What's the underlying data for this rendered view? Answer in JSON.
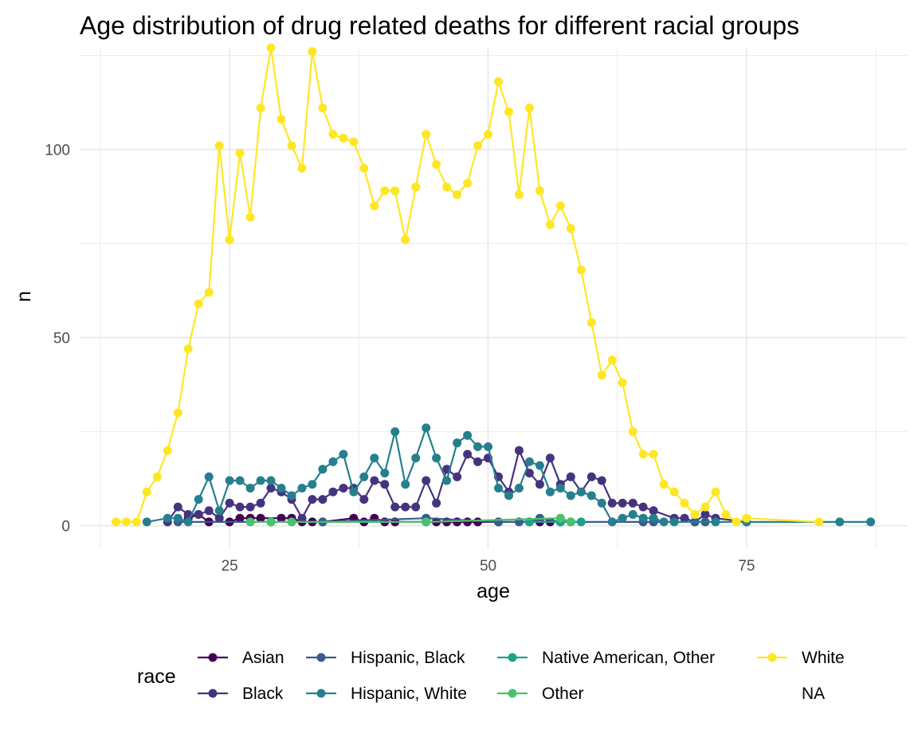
{
  "chart_data": {
    "type": "line",
    "title": "Age distribution of drug related deaths for different racial groups",
    "xlabel": "age",
    "ylabel": "n",
    "xlim": [
      10.5,
      90.5
    ],
    "ylim": [
      -6,
      127
    ],
    "x_ticks": [
      25,
      50,
      75
    ],
    "x_tick_labels": [
      "25",
      "50",
      "75"
    ],
    "y_ticks": [
      0,
      50,
      100
    ],
    "y_tick_labels": [
      "0",
      "50",
      "100"
    ],
    "grid": true,
    "legend": {
      "title": "race",
      "position": "bottom",
      "entries": [
        {
          "label": "Asian",
          "color": "#440154"
        },
        {
          "label": "Black",
          "color": "#46337E"
        },
        {
          "label": "Hispanic, Black",
          "color": "#365C8D"
        },
        {
          "label": "Hispanic, White",
          "color": "#277F8E"
        },
        {
          "label": "Native American, Other",
          "color": "#1FA187"
        },
        {
          "label": "Other",
          "color": "#4AC16D"
        },
        {
          "label": "White",
          "color": "#FDE725"
        },
        {
          "label": "NA",
          "color": null
        }
      ]
    },
    "series": [
      {
        "name": "Asian",
        "color": "#440154",
        "points": [
          [
            21,
            2
          ],
          [
            22,
            3
          ],
          [
            23,
            1
          ],
          [
            25,
            1
          ],
          [
            26,
            2
          ],
          [
            27,
            2
          ],
          [
            28,
            2
          ],
          [
            30,
            2
          ],
          [
            31,
            2
          ],
          [
            32,
            1
          ],
          [
            33,
            1
          ],
          [
            34,
            1
          ],
          [
            37,
            2
          ],
          [
            38,
            1
          ],
          [
            39,
            2
          ],
          [
            40,
            1
          ],
          [
            41,
            1
          ],
          [
            44,
            1
          ],
          [
            45,
            1
          ],
          [
            46,
            1
          ],
          [
            47,
            1
          ],
          [
            48,
            1
          ],
          [
            49,
            1
          ],
          [
            51,
            1
          ],
          [
            55,
            1
          ],
          [
            56,
            1
          ],
          [
            57,
            1
          ]
        ]
      },
      {
        "name": "Black",
        "color": "#46337E",
        "points": [
          [
            19,
            1
          ],
          [
            20,
            5
          ],
          [
            21,
            3
          ],
          [
            22,
            3
          ],
          [
            23,
            4
          ],
          [
            24,
            2
          ],
          [
            25,
            6
          ],
          [
            26,
            5
          ],
          [
            27,
            5
          ],
          [
            28,
            6
          ],
          [
            29,
            10
          ],
          [
            30,
            9
          ],
          [
            31,
            7
          ],
          [
            32,
            2
          ],
          [
            33,
            7
          ],
          [
            34,
            7
          ],
          [
            35,
            9
          ],
          [
            36,
            10
          ],
          [
            37,
            10
          ],
          [
            38,
            7
          ],
          [
            39,
            12
          ],
          [
            40,
            11
          ],
          [
            41,
            5
          ],
          [
            42,
            5
          ],
          [
            43,
            5
          ],
          [
            44,
            12
          ],
          [
            45,
            6
          ],
          [
            46,
            15
          ],
          [
            47,
            13
          ],
          [
            48,
            19
          ],
          [
            49,
            17
          ],
          [
            50,
            18
          ],
          [
            51,
            13
          ],
          [
            52,
            9
          ],
          [
            53,
            20
          ],
          [
            54,
            14
          ],
          [
            55,
            11
          ],
          [
            56,
            18
          ],
          [
            57,
            11
          ],
          [
            58,
            13
          ],
          [
            59,
            9
          ],
          [
            60,
            13
          ],
          [
            61,
            12
          ],
          [
            62,
            6
          ],
          [
            63,
            6
          ],
          [
            64,
            6
          ],
          [
            65,
            5
          ],
          [
            66,
            4
          ],
          [
            68,
            2
          ],
          [
            69,
            2
          ],
          [
            70,
            1
          ],
          [
            71,
            3
          ],
          [
            72,
            2
          ],
          [
            75,
            1
          ]
        ]
      },
      {
        "name": "Hispanic, Black",
        "color": "#365C8D",
        "points": [
          [
            20,
            1
          ],
          [
            29,
            1
          ],
          [
            34,
            1
          ],
          [
            44,
            2
          ],
          [
            51,
            1
          ],
          [
            53,
            1
          ],
          [
            54,
            1
          ],
          [
            55,
            2
          ],
          [
            57,
            1
          ],
          [
            58,
            1
          ],
          [
            65,
            1
          ],
          [
            66,
            1
          ],
          [
            70,
            1
          ],
          [
            71,
            1
          ]
        ]
      },
      {
        "name": "Hispanic, White",
        "color": "#277F8E",
        "points": [
          [
            17,
            1
          ],
          [
            19,
            2
          ],
          [
            20,
            2
          ],
          [
            21,
            1
          ],
          [
            22,
            7
          ],
          [
            23,
            13
          ],
          [
            24,
            4
          ],
          [
            25,
            12
          ],
          [
            26,
            12
          ],
          [
            27,
            10
          ],
          [
            28,
            12
          ],
          [
            29,
            12
          ],
          [
            30,
            10
          ],
          [
            31,
            8
          ],
          [
            32,
            10
          ],
          [
            33,
            11
          ],
          [
            34,
            15
          ],
          [
            35,
            17
          ],
          [
            36,
            19
          ],
          [
            37,
            9
          ],
          [
            38,
            13
          ],
          [
            39,
            18
          ],
          [
            40,
            14
          ],
          [
            41,
            25
          ],
          [
            42,
            11
          ],
          [
            43,
            18
          ],
          [
            44,
            26
          ],
          [
            45,
            18
          ],
          [
            46,
            12
          ],
          [
            47,
            22
          ],
          [
            48,
            24
          ],
          [
            49,
            21
          ],
          [
            50,
            21
          ],
          [
            51,
            10
          ],
          [
            52,
            8
          ],
          [
            53,
            10
          ],
          [
            54,
            17
          ],
          [
            55,
            16
          ],
          [
            56,
            9
          ],
          [
            57,
            10
          ],
          [
            58,
            8
          ],
          [
            59,
            9
          ],
          [
            60,
            8
          ],
          [
            61,
            6
          ],
          [
            62,
            1
          ],
          [
            63,
            2
          ],
          [
            64,
            3
          ],
          [
            65,
            2
          ],
          [
            66,
            2
          ],
          [
            67,
            1
          ],
          [
            68,
            1
          ],
          [
            72,
            1
          ],
          [
            75,
            1
          ],
          [
            84,
            1
          ],
          [
            87,
            1
          ]
        ]
      },
      {
        "name": "Native American, Other",
        "color": "#1FA187",
        "points": [
          [
            54,
            1
          ],
          [
            57,
            1
          ],
          [
            59,
            1
          ]
        ]
      },
      {
        "name": "Other",
        "color": "#4AC16D",
        "points": [
          [
            27,
            1
          ],
          [
            29,
            1
          ],
          [
            31,
            1
          ],
          [
            44,
            1
          ],
          [
            57,
            2
          ],
          [
            58,
            1
          ]
        ]
      },
      {
        "name": "White",
        "color": "#FDE725",
        "points": [
          [
            14,
            1
          ],
          [
            15,
            1
          ],
          [
            16,
            1
          ],
          [
            17,
            9
          ],
          [
            18,
            13
          ],
          [
            19,
            20
          ],
          [
            20,
            30
          ],
          [
            21,
            47
          ],
          [
            22,
            59
          ],
          [
            23,
            62
          ],
          [
            24,
            101
          ],
          [
            25,
            76
          ],
          [
            26,
            99
          ],
          [
            27,
            82
          ],
          [
            28,
            111
          ],
          [
            29,
            127
          ],
          [
            30,
            108
          ],
          [
            31,
            101
          ],
          [
            32,
            95
          ],
          [
            33,
            126
          ],
          [
            34,
            111
          ],
          [
            35,
            104
          ],
          [
            36,
            103
          ],
          [
            37,
            102
          ],
          [
            38,
            95
          ],
          [
            39,
            85
          ],
          [
            40,
            89
          ],
          [
            41,
            89
          ],
          [
            42,
            76
          ],
          [
            43,
            90
          ],
          [
            44,
            104
          ],
          [
            45,
            96
          ],
          [
            46,
            90
          ],
          [
            47,
            88
          ],
          [
            48,
            91
          ],
          [
            49,
            101
          ],
          [
            50,
            104
          ],
          [
            51,
            118
          ],
          [
            52,
            110
          ],
          [
            53,
            88
          ],
          [
            54,
            111
          ],
          [
            55,
            89
          ],
          [
            56,
            80
          ],
          [
            57,
            85
          ],
          [
            58,
            79
          ],
          [
            59,
            68
          ],
          [
            60,
            54
          ],
          [
            61,
            40
          ],
          [
            62,
            44
          ],
          [
            63,
            38
          ],
          [
            64,
            25
          ],
          [
            65,
            19
          ],
          [
            66,
            19
          ],
          [
            67,
            11
          ],
          [
            68,
            9
          ],
          [
            69,
            6
          ],
          [
            70,
            3
          ],
          [
            71,
            5
          ],
          [
            72,
            9
          ],
          [
            73,
            3
          ],
          [
            74,
            1
          ],
          [
            75,
            2
          ],
          [
            82,
            1
          ]
        ]
      }
    ]
  }
}
